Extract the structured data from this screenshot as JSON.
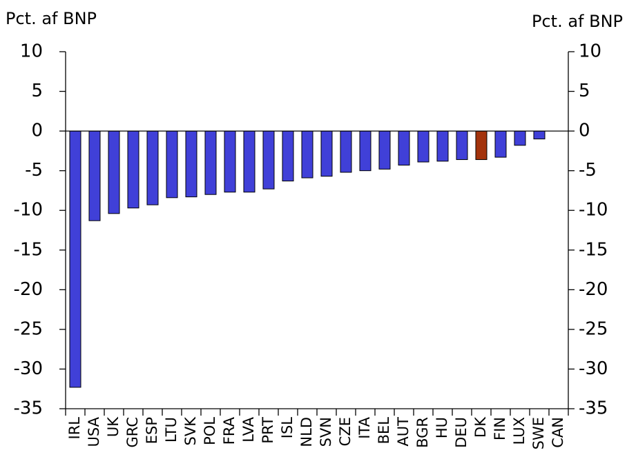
{
  "chart_data": {
    "type": "bar",
    "y_label": "Pct. af BNP",
    "y2_label": "Pct. af BNP",
    "categories": [
      "IRL",
      "USA",
      "UK",
      "GRC",
      "ESP",
      "LTU",
      "SVK",
      "POL",
      "FRA",
      "LVA",
      "PRT",
      "ISL",
      "NLD",
      "SVN",
      "CZE",
      "ITA",
      "BEL",
      "AUT",
      "BGR",
      "HU",
      "DEU",
      "DK",
      "FIN",
      "LUX",
      "SWE",
      "CAN"
    ],
    "values": [
      -32.3,
      -11.3,
      -10.4,
      -9.7,
      -9.3,
      -8.4,
      -8.3,
      -8.0,
      -7.7,
      -7.7,
      -7.3,
      -6.3,
      -5.9,
      -5.7,
      -5.2,
      -5.0,
      -4.8,
      -4.3,
      -3.9,
      -3.8,
      -3.6,
      -3.6,
      -3.3,
      -1.8,
      -1.0,
      0
    ],
    "colors": [
      "#4040d8",
      "#4040d8",
      "#4040d8",
      "#4040d8",
      "#4040d8",
      "#4040d8",
      "#4040d8",
      "#4040d8",
      "#4040d8",
      "#4040d8",
      "#4040d8",
      "#4040d8",
      "#4040d8",
      "#4040d8",
      "#4040d8",
      "#4040d8",
      "#4040d8",
      "#4040d8",
      "#4040d8",
      "#4040d8",
      "#4040d8",
      "#a3330c",
      "#4040d8",
      "#4040d8",
      "#4040d8",
      "#4040d8"
    ],
    "ylim": [
      -35,
      10
    ],
    "yticks": [
      10,
      5,
      0,
      -5,
      -10,
      -15,
      -20,
      -25,
      -30,
      -35
    ],
    "y2lim": [
      -35,
      10
    ],
    "y2ticks": [
      10,
      5,
      0,
      -5,
      -10,
      -15,
      -20,
      -25,
      -30,
      -35
    ]
  }
}
